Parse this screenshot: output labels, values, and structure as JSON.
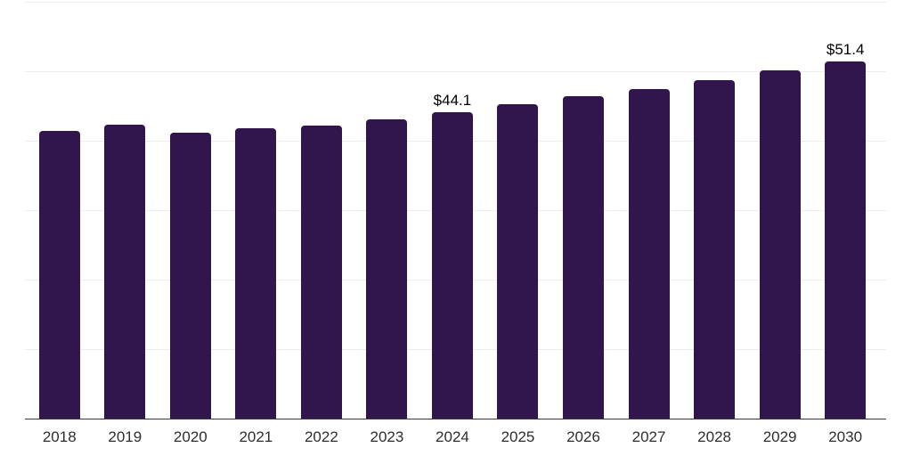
{
  "chart_data": {
    "type": "bar",
    "title": "",
    "xlabel": "",
    "ylabel": "",
    "categories": [
      "2018",
      "2019",
      "2020",
      "2021",
      "2022",
      "2023",
      "2024",
      "2025",
      "2026",
      "2027",
      "2028",
      "2029",
      "2030"
    ],
    "values": [
      41.4,
      42.3,
      41.1,
      41.8,
      42.2,
      43.1,
      44.1,
      45.2,
      46.4,
      47.5,
      48.7,
      50.1,
      51.4
    ],
    "data_labels": [
      "",
      "",
      "",
      "",
      "",
      "",
      "$44.1",
      "",
      "",
      "",
      "",
      "",
      "$51.4"
    ],
    "ylim": [
      0,
      60
    ],
    "grid_step": 10,
    "grid": "horizontal light lines, no y tick labels",
    "legend": "none",
    "bar_color": "#31154d",
    "gridline_color": "#ededed",
    "axis_line_color": "#3c3c3c",
    "tick_label_color": "#2e2e2e",
    "value_label_color": "#000000",
    "background_color": "#ffffff"
  }
}
